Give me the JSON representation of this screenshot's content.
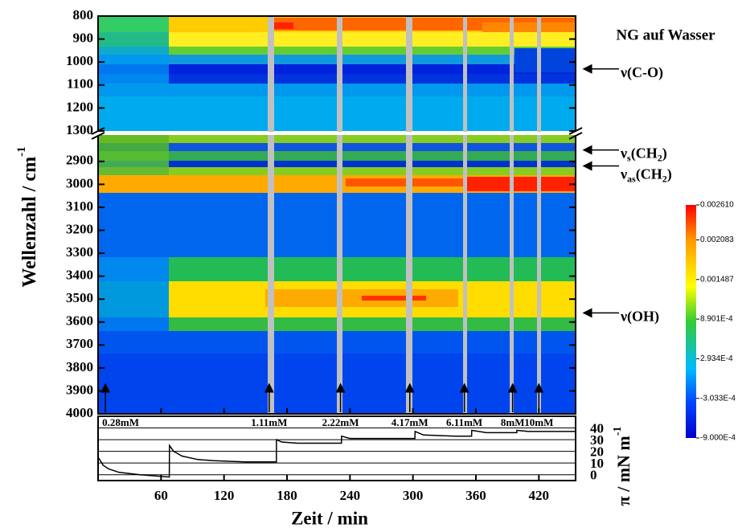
{
  "chart_data": [
    {
      "type": "heatmap",
      "title": "NG auf Wasser",
      "ylabel": [
        "Wellenzahl / cm",
        "-1"
      ],
      "panels": [
        {
          "ylim": [
            800,
            1300
          ],
          "yticks": [
            800,
            900,
            1000,
            1100,
            1200,
            1300
          ]
        },
        {
          "ylim": [
            2785,
            4000
          ],
          "yticks": [
            2900,
            3000,
            3100,
            3200,
            3300,
            3400,
            3500,
            3600,
            3700,
            3800,
            3900,
            4000
          ]
        }
      ],
      "colorbar": {
        "lim": [
          -0.0009,
          0.00261
        ],
        "ticks": [
          {
            "value": 0.00261,
            "label": "0.002610"
          },
          {
            "value": 0.002083,
            "label": "0.002083"
          },
          {
            "value": 0.001487,
            "label": "0.001487"
          },
          {
            "value": 0.0008901,
            "label": "8.901E-4"
          },
          {
            "value": 0.0002934,
            "label": "2.934E-4"
          },
          {
            "value": -0.0003033,
            "label": "-3.033E-4"
          },
          {
            "value": -0.0009,
            "label": "-9.000E-4"
          }
        ]
      },
      "annotations": [
        {
          "label": "0.28mM",
          "x": 7
        },
        {
          "label": "1.11mM",
          "x": 163
        },
        {
          "label": "2.22mM",
          "x": 231
        },
        {
          "label": "4.17mM",
          "x": 297
        },
        {
          "label": "6.11mM",
          "x": 349
        },
        {
          "label": "8mM",
          "x": 395
        },
        {
          "label": "10mM",
          "x": 420
        }
      ],
      "bands": [
        {
          "text": [
            "ν(C-O)"
          ],
          "y": 1030
        },
        {
          "text": [
            "ν",
            "s",
            "(CH",
            "2",
            ")"
          ],
          "y": 2850
        },
        {
          "text": [
            "ν",
            "as",
            "(CH",
            "2",
            ")"
          ],
          "y": 2920
        },
        {
          "text": [
            "ν(OH)"
          ],
          "y": 3560
        }
      ]
    },
    {
      "type": "line",
      "xlabel": "Zeit / min",
      "ylabel": [
        "π / mN m",
        "-1"
      ],
      "color": "#000000",
      "xlim": [
        0,
        455
      ],
      "xticks": [
        60,
        120,
        180,
        240,
        300,
        360,
        420
      ],
      "ylim": [
        -5,
        50
      ],
      "yticks": [
        0,
        10,
        20,
        30,
        40
      ],
      "grid": true,
      "x": [
        0,
        5,
        10,
        20,
        40,
        67.9,
        68,
        72,
        80,
        95,
        110,
        140,
        169.9,
        170,
        175,
        190,
        231.9,
        232,
        240,
        270,
        301.9,
        302,
        310,
        340,
        355.9,
        356,
        370,
        398.9,
        399,
        410,
        424.9,
        425,
        440,
        455
      ],
      "values": [
        15,
        8,
        5,
        2,
        0,
        -2,
        25,
        20,
        16,
        13,
        12,
        11,
        11,
        30,
        28,
        27,
        27,
        33,
        31,
        31,
        31,
        37,
        34,
        33,
        33,
        38,
        36,
        36,
        38,
        37,
        37,
        37,
        37,
        37
      ]
    }
  ]
}
